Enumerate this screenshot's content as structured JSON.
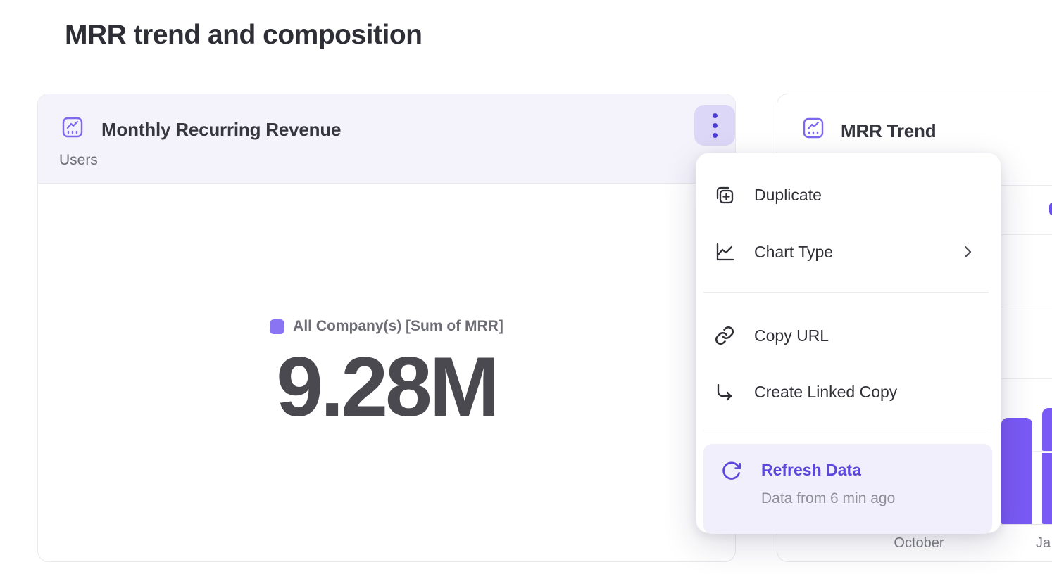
{
  "page": {
    "title": "MRR trend and composition"
  },
  "mrr_card": {
    "title": "Monthly Recurring Revenue",
    "subtitle": "Users",
    "legend_label": "All Company(s) [Sum of MRR]",
    "value": "9.28M",
    "legend_color": "#8b74f4",
    "header_bg": "#f4f3fb",
    "icon": "line-chart-icon"
  },
  "trend_card": {
    "title": "MRR Trend",
    "icon": "line-chart-icon",
    "legend_color": "#6b51ee",
    "x_labels": {
      "0": "October",
      "1": "Ja"
    }
  },
  "menu": {
    "items": {
      "0": {
        "label": "Duplicate",
        "icon": "duplicate-icon"
      },
      "1": {
        "label": "Chart Type",
        "icon": "chart-type-icon",
        "has_submenu": true
      },
      "2": {
        "label": "Copy URL",
        "icon": "link-icon"
      },
      "3": {
        "label": "Create Linked Copy",
        "icon": "linked-copy-icon"
      },
      "4": {
        "label": "Refresh Data",
        "icon": "refresh-icon",
        "sublabel": "Data from 6 min ago",
        "highlighted": true,
        "accent": "#5b47dc"
      }
    }
  },
  "chart_data": [
    {
      "type": "table",
      "title": "Monthly Recurring Revenue",
      "series": [
        {
          "name": "All Company(s) [Sum of MRR]",
          "values": [
            "9.28M"
          ]
        }
      ]
    },
    {
      "type": "bar",
      "title": "MRR Trend",
      "note": "partially occluded by open menu; no y-axis labels visible",
      "x_tick_labels_visible": [
        "October",
        "Ja"
      ],
      "bar_color": "#7a5af5",
      "grid": true,
      "bars": [
        {
          "x_offset": 318,
          "width": 44,
          "segments": [
            [
              0,
              0.314
            ]
          ]
        },
        {
          "x_offset": 376,
          "width": 44,
          "segments": [
            [
              0,
              0.21
            ],
            [
              0.216,
              0.343
            ]
          ]
        }
      ]
    }
  ]
}
